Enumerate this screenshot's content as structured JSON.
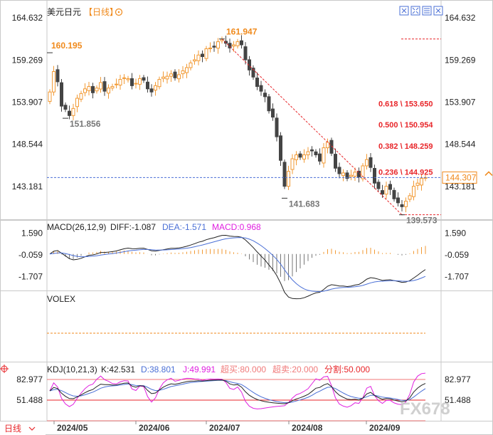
{
  "title": "美元日元",
  "period_tag": "【日线】",
  "period_button": "日线",
  "watermark": "FX678",
  "colors": {
    "up": "#f29a34",
    "down": "#444444",
    "blue": "#4a6fd6",
    "red": "#e8262a",
    "orange": "#f08a1c",
    "magenta": "#e020e0"
  },
  "icons": [
    "collapse-icon",
    "expand-icon",
    "grid-icon",
    "zoom-icon"
  ],
  "chart_data": [
    {
      "panel": "price",
      "type": "candlestick",
      "symbol": "美元日元",
      "period": "日线",
      "ylim": [
        139.0,
        166.0
      ],
      "y_ticks": [
        "164.632",
        "159.269",
        "153.907",
        "148.544",
        "143.181"
      ],
      "x_ticks": [
        "2024/05",
        "2024/06",
        "2024/07",
        "2024/08",
        "2024/09"
      ],
      "current_price": "144.307",
      "annotations": [
        {
          "label": "160.195",
          "value": 160.195,
          "date": "2024-04-29"
        },
        {
          "label": "151.856",
          "value": 151.856,
          "date": "2024-05-03"
        },
        {
          "label": "161.947",
          "value": 161.947,
          "date": "2024-07-03"
        },
        {
          "label": "141.683",
          "value": 141.683,
          "date": "2024-08-05"
        },
        {
          "label": "139.573",
          "value": 139.573,
          "date": "2024-09-16"
        }
      ],
      "fibonacci": [
        {
          "label": "0.618 \\ 153.650",
          "value": 153.65
        },
        {
          "label": "0.500 \\ 150.954",
          "value": 150.954
        },
        {
          "label": "0.382 \\ 148.259",
          "value": 148.259
        },
        {
          "label": "0.236 \\ 144.925",
          "value": 144.925
        }
      ],
      "fib_levels": [
        161.947,
        139.573
      ],
      "closes": [
        155.2,
        157.8,
        156.5,
        153.4,
        153.0,
        152.2,
        153.1,
        154.4,
        155.0,
        155.6,
        155.9,
        155.1,
        155.7,
        156.4,
        155.3,
        155.7,
        155.9,
        156.2,
        156.8,
        157.0,
        156.9,
        156.0,
        156.3,
        156.9,
        156.7,
        155.6,
        155.2,
        156.0,
        156.8,
        157.1,
        157.2,
        157.5,
        157.0,
        157.4,
        157.9,
        158.3,
        158.9,
        159.3,
        159.9,
        159.7,
        160.7,
        160.8,
        160.9,
        161.6,
        161.9,
        161.4,
        160.8,
        161.2,
        161.6,
        161.2,
        159.3,
        158.0,
        157.1,
        155.9,
        155.3,
        154.6,
        152.8,
        152.0,
        149.5,
        146.5,
        143.2,
        145.1,
        146.7,
        147.2,
        146.9,
        147.2,
        147.6,
        147.7,
        147.2,
        146.4,
        148.1,
        148.8,
        147.4,
        145.5,
        144.8,
        144.9,
        144.2,
        144.6,
        145.0,
        144.4,
        145.8,
        146.6,
        145.6,
        143.6,
        142.9,
        142.2,
        143.2,
        142.8,
        141.6,
        141.1,
        140.6,
        141.3,
        142.0,
        143.2,
        143.6,
        144.2,
        144.3
      ]
    },
    {
      "panel": "macd",
      "type": "line",
      "title": "MACD(26,12,9)",
      "diff_label": "DIFF:-1.087",
      "dea_label": "DEA:-1.571",
      "macd_label": "MACD:0.968",
      "ylim": [
        -2.6,
        2.2
      ],
      "y_ticks": [
        "1.590",
        "-0.059",
        "-1.707"
      ]
    },
    {
      "panel": "volex",
      "type": "line",
      "title": "VOLEX"
    },
    {
      "panel": "kdj",
      "type": "line",
      "title": "KDJ(10,21,3)",
      "k_label": "K:42.531",
      "d_label": "D:38.801",
      "j_label": "J:49.991",
      "overbought_label": "超买:80.000",
      "oversold_label": "超卖:20.000",
      "divider_label": "分割:50.000",
      "ylim": [
        0,
        100
      ],
      "y_ticks": [
        "82.977",
        "51.488"
      ]
    }
  ]
}
